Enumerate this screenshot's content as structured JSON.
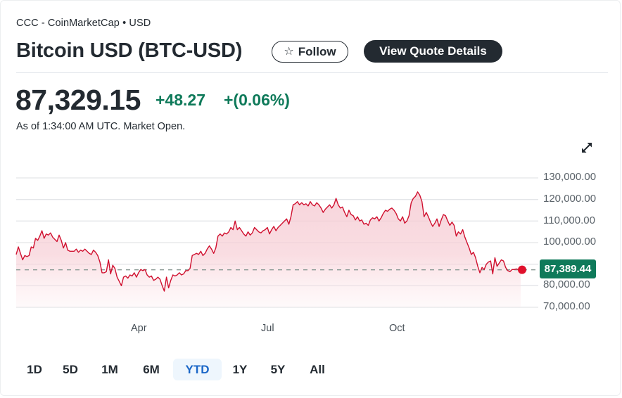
{
  "header": {
    "source": "CCC - CoinMarketCap • USD",
    "title": "Bitcoin USD (BTC-USD)",
    "follow_label": "Follow",
    "follow_icon": "star-outline-icon",
    "quote_details_label": "View Quote Details"
  },
  "quote": {
    "price": "87,329.15",
    "change": "+48.27",
    "change_percent": "+(0.06%)",
    "as_of": "As of 1:34:00 AM UTC. Market Open.",
    "change_color": "#0f7a5a"
  },
  "chart": {
    "expand_icon": "expand-arrows-icon",
    "current_price_tag": "87,389.44",
    "y_labels": [
      "130,000.00",
      "120,000.00",
      "110,000.00",
      "100,000.00",
      "80,000.00",
      "70,000.00"
    ],
    "x_labels": [
      "Apr",
      "Jul",
      "Oct"
    ],
    "line_color": "#d0102f",
    "tag_color": "#0f7a5a"
  },
  "ranges": {
    "items": [
      "1D",
      "5D",
      "1M",
      "6M",
      "YTD",
      "1Y",
      "5Y",
      "All"
    ],
    "active": "YTD"
  },
  "chart_data": {
    "type": "area",
    "title": "Bitcoin USD (BTC-USD)",
    "xlabel": "",
    "ylabel": "",
    "x_ticks": [
      "Apr",
      "Jul",
      "Oct"
    ],
    "y_ticks": [
      70000,
      80000,
      90000,
      100000,
      110000,
      120000,
      130000
    ],
    "ylim": [
      70000,
      130000
    ],
    "grid": true,
    "reference_line": 87389.44,
    "last_value": 87389.44,
    "series": [
      {
        "name": "BTC-USD",
        "values": [
          94500,
          98000,
          95000,
          92000,
          94000,
          93500,
          94000,
          98000,
          97500,
          102000,
          101000,
          103000,
          105500,
          102000,
          104000,
          103500,
          104500,
          102500,
          101500,
          100500,
          103500,
          101000,
          97500,
          100000,
          96500,
          96000,
          96000,
          96000,
          97000,
          95500,
          96500,
          96000,
          97000,
          96000,
          95000,
          94500,
          96500,
          95500,
          94000,
          91000,
          86000,
          86000,
          86500,
          92000,
          85500,
          89500,
          88000,
          84000,
          82000,
          80000,
          84000,
          84500,
          83500,
          85000,
          84500,
          86000,
          84000,
          86000,
          87500,
          87000,
          87500,
          85000,
          84000,
          84500,
          82500,
          83000,
          84000,
          83000,
          80000,
          77500,
          84000,
          79000,
          82500,
          85000,
          84500,
          85000,
          86000,
          85000,
          85500,
          87000,
          87000,
          88000,
          94000,
          94500,
          95000,
          94500,
          96000,
          94000,
          95000,
          97000,
          98500,
          97000,
          95000,
          97500,
          103000,
          104000,
          103000,
          104500,
          104000,
          105000,
          107000,
          106000,
          110000,
          106000,
          107000,
          105500,
          104000,
          103000,
          105000,
          103500,
          104500,
          107000,
          106000,
          105000,
          104500,
          105500,
          106000,
          107000,
          104000,
          106000,
          107500,
          105500,
          107000,
          108000,
          109000,
          110000,
          111000,
          108500,
          112000,
          117500,
          118000,
          119000,
          117500,
          118500,
          117500,
          118000,
          117000,
          119000,
          117500,
          117000,
          118500,
          117500,
          116000,
          114000,
          115500,
          116500,
          117500,
          116000,
          117500,
          120500,
          117500,
          116000,
          116500,
          114000,
          112000,
          115000,
          113000,
          112500,
          110500,
          112000,
          110000,
          110500,
          108500,
          109000,
          108000,
          110500,
          111500,
          111000,
          112000,
          110000,
          111500,
          113500,
          115000,
          114500,
          115500,
          116000,
          115000,
          113500,
          111000,
          110000,
          112000,
          109000,
          110000,
          112500,
          118500,
          120500,
          121500,
          123500,
          122000,
          119000,
          112000,
          114000,
          112000,
          109500,
          107500,
          109000,
          111000,
          107500,
          110500,
          113000,
          112500,
          110000,
          108000,
          109500,
          108000,
          103000,
          105000,
          104000,
          106000,
          102500,
          100000,
          97500,
          94500,
          95500,
          93000,
          89000,
          86000,
          88500,
          87500,
          90000,
          91000,
          91500,
          85500,
          93000,
          89000,
          90500,
          92000,
          91500,
          88500,
          87000,
          86500,
          87500,
          87500,
          87800,
          87400,
          87389
        ]
      }
    ]
  }
}
